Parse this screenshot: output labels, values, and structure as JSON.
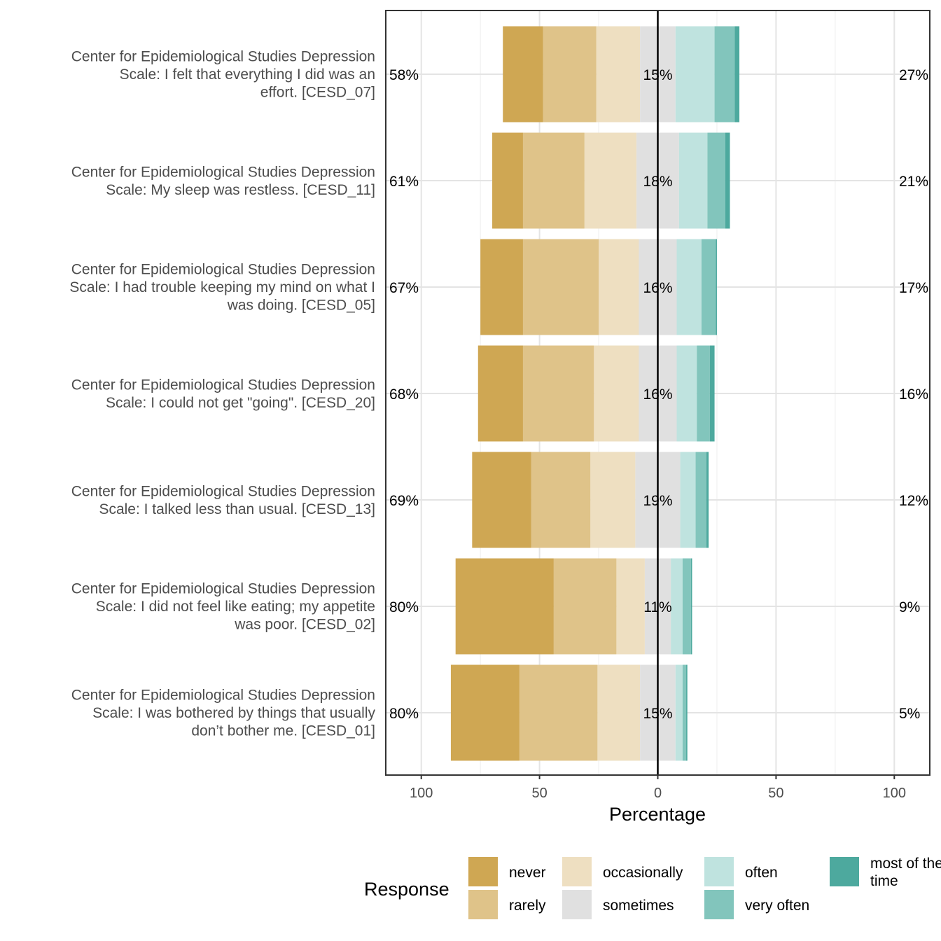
{
  "chart_data": {
    "type": "bar",
    "orientation": "horizontal-diverging-stacked",
    "xlabel": "Percentage",
    "x_ticks": [
      {
        "value": -100,
        "label": "100"
      },
      {
        "value": -50,
        "label": "50"
      },
      {
        "value": 0,
        "label": "0"
      },
      {
        "value": 50,
        "label": "50"
      },
      {
        "value": 100,
        "label": "100"
      }
    ],
    "xlim": [
      -115,
      115
    ],
    "grid": true,
    "legend": {
      "title": "Response",
      "position": "bottom",
      "entries": [
        {
          "key": "never",
          "label": "never",
          "color": "#CFA753"
        },
        {
          "key": "rarely",
          "label": "rarely",
          "color": "#DFC389"
        },
        {
          "key": "occasionally",
          "label": "occasionally",
          "color": "#EEDFC1"
        },
        {
          "key": "sometimes",
          "label": "sometimes",
          "color": "#E0E0E0"
        },
        {
          "key": "often",
          "label": "often",
          "color": "#BFE3DF"
        },
        {
          "key": "very_often",
          "label": "very often",
          "color": "#82C5BC"
        },
        {
          "key": "most_of_the_time",
          "label_lines": [
            "most of the",
            "time"
          ],
          "color": "#4DA99E"
        }
      ]
    },
    "items": [
      {
        "label_lines": [
          "Center for Epidemiological Studies Depression",
          "Scale: I felt that everything I did was an",
          "effort. [CESD_07]"
        ],
        "low_label": "58%",
        "neutral_label": "15%",
        "high_label": "27%",
        "values": {
          "never": 17,
          "rarely": 22.5,
          "occasionally": 18.5,
          "sometimes": 15,
          "often": 16.5,
          "very_often": 8.5,
          "most_of_the_time": 2
        }
      },
      {
        "label_lines": [
          "Center for Epidemiological Studies Depression",
          "Scale: My sleep was restless. [CESD_11]"
        ],
        "low_label": "61%",
        "neutral_label": "18%",
        "high_label": "21%",
        "values": {
          "never": 13,
          "rarely": 26,
          "occasionally": 22,
          "sometimes": 18,
          "often": 12,
          "very_often": 7.5,
          "most_of_the_time": 2
        }
      },
      {
        "label_lines": [
          "Center for Epidemiological Studies Depression",
          "Scale: I had trouble keeping my mind on what I",
          "was doing. [CESD_05]"
        ],
        "low_label": "67%",
        "neutral_label": "16%",
        "high_label": "17%",
        "values": {
          "never": 18,
          "rarely": 32,
          "occasionally": 17,
          "sometimes": 16,
          "often": 10.5,
          "very_often": 6,
          "most_of_the_time": 0.5
        }
      },
      {
        "label_lines": [
          "Center for Epidemiological Studies Depression",
          "Scale: I could not get \"going\". [CESD_20]"
        ],
        "low_label": "68%",
        "neutral_label": "16%",
        "high_label": "16%",
        "values": {
          "never": 19,
          "rarely": 30,
          "occasionally": 19,
          "sometimes": 16,
          "often": 8.5,
          "very_often": 5.5,
          "most_of_the_time": 2
        }
      },
      {
        "label_lines": [
          "Center for Epidemiological Studies Depression",
          "Scale: I talked less than usual. [CESD_13]"
        ],
        "low_label": "69%",
        "neutral_label": "19%",
        "high_label": "12%",
        "values": {
          "never": 25,
          "rarely": 25,
          "occasionally": 19,
          "sometimes": 19,
          "often": 6.5,
          "very_often": 4.5,
          "most_of_the_time": 1
        }
      },
      {
        "label_lines": [
          "Center for Epidemiological Studies Depression",
          "Scale: I did not feel like eating; my appetite",
          "was poor. [CESD_02]"
        ],
        "low_label": "80%",
        "neutral_label": "11%",
        "high_label": "9%",
        "values": {
          "never": 41.5,
          "rarely": 26.5,
          "occasionally": 12,
          "sometimes": 11,
          "often": 5,
          "very_often": 3.5,
          "most_of_the_time": 0.5
        }
      },
      {
        "label_lines": [
          "Center for Epidemiological Studies Depression",
          "Scale: I was bothered by things that usually",
          "don’t bother me. [CESD_01]"
        ],
        "low_label": "80%",
        "neutral_label": "15%",
        "high_label": "5%",
        "values": {
          "never": 29,
          "rarely": 33,
          "occasionally": 18,
          "sometimes": 15,
          "often": 3,
          "very_often": 1.5,
          "most_of_the_time": 0.5
        }
      }
    ]
  }
}
